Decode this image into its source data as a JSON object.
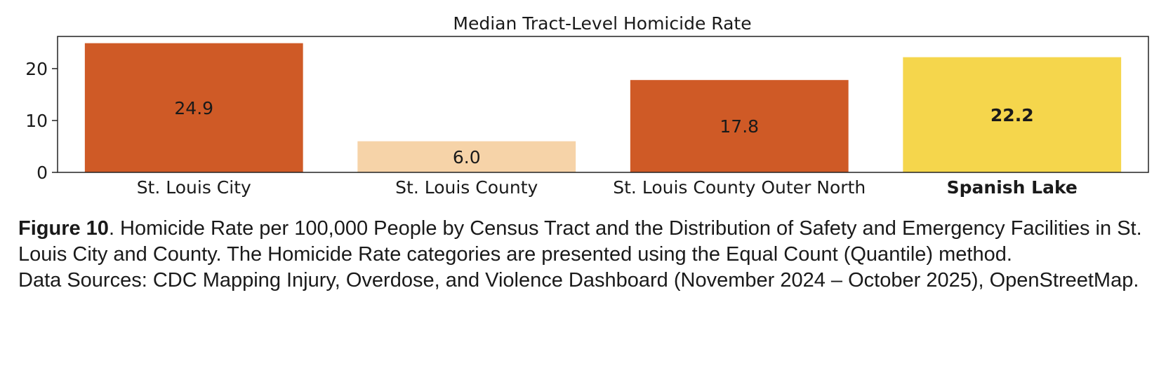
{
  "chart_data": {
    "type": "bar",
    "title": "Median Tract-Level Homicide Rate",
    "xlabel": "",
    "ylabel": "",
    "categories": [
      "St. Louis City",
      "St. Louis County",
      "St. Louis County Outer North",
      "Spanish Lake"
    ],
    "values": [
      24.9,
      6.0,
      17.8,
      22.2
    ],
    "data_labels": [
      "24.9",
      "6.0",
      "17.8",
      "22.2"
    ],
    "bar_colors": [
      "#cf5a26",
      "#f6d3a8",
      "#cf5a26",
      "#f5d64c"
    ],
    "highlight_category": "Spanish Lake",
    "ylim": [
      0,
      26.2
    ],
    "yticks": [
      0,
      10,
      20
    ],
    "grid": false,
    "legend": "none"
  },
  "caption": {
    "figure_label": "Figure 10",
    "text": ". Homicide Rate per 100,000 People by Census Tract and the Distribution of Safety and Emergency Facilities in St. Louis City and County. The Homicide Rate categories are presented using the Equal Count (Quantile) method.",
    "sources": "Data Sources: CDC Mapping Injury, Overdose, and Violence Dashboard (November 2024 – October 2025), OpenStreetMap."
  }
}
